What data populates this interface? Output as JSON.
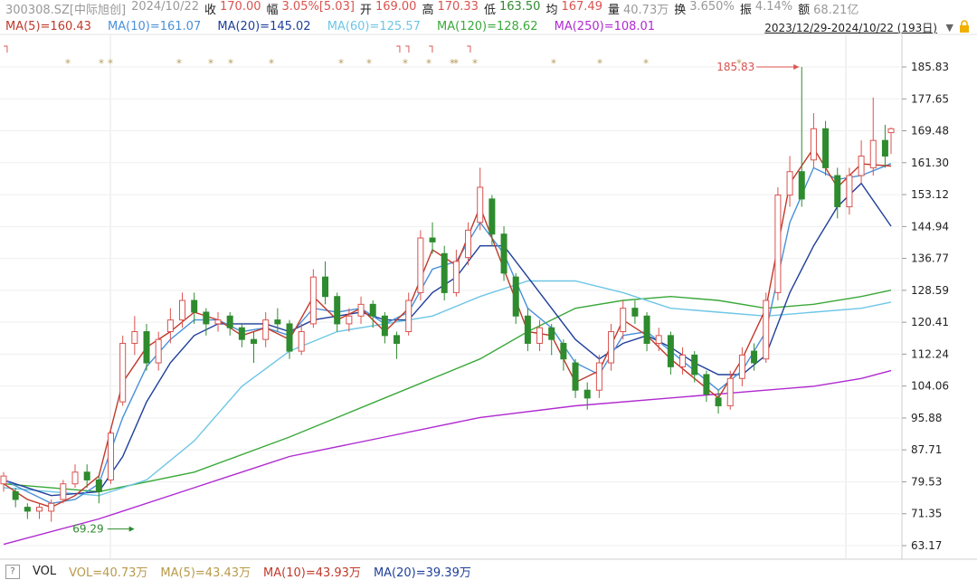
{
  "header": {
    "code": "300308.SZ[中际旭创]",
    "date": "2024/10/22",
    "close_label": "收",
    "close": "170.00",
    "chg_label": "幅",
    "chg": "3.05%[5.03]",
    "open_label": "开",
    "open": "169.00",
    "high_label": "高",
    "high": "170.33",
    "low_label": "低",
    "low": "163.50",
    "avg_label": "均",
    "avg": "167.49",
    "vol_label": "量",
    "vol": "40.73万",
    "turn_label": "换",
    "turn": "3.650%",
    "amp_label": "振",
    "amp": "4.14%",
    "amt_label": "额",
    "amt": "68.21亿"
  },
  "ma_legend": {
    "ma5": "MA(5)=160.43",
    "ma10": "MA(10)=161.07",
    "ma20": "MA(20)=145.02",
    "ma60": "MA(60)=125.57",
    "ma120": "MA(120)=128.62",
    "ma250": "MA(250)=108.01"
  },
  "date_range": "2023/12/29-2024/10/22 (193日)",
  "volume_bar": {
    "help": "?",
    "label": "VOL",
    "vol": "VOL=40.73万",
    "ma5": "MA(5)=43.43万",
    "ma10": "MA(10)=43.93万",
    "ma20": "MA(20)=39.39万"
  },
  "colors": {
    "up": "#d9534f",
    "down": "#2e8b2e",
    "ma5": "#c0392b",
    "ma10": "#4a90d9",
    "ma20": "#1f3f9a",
    "ma60": "#6ec6e6",
    "ma120": "#3aa83a",
    "ma250": "#b02ad0"
  },
  "chart_data": {
    "type": "candlestick",
    "ylim": [
      63.17,
      185.83
    ],
    "y_ticks": [
      "185.83",
      "177.65",
      "169.48",
      "161.30",
      "153.12",
      "144.94",
      "136.77",
      "128.59",
      "120.41",
      "112.24",
      "104.06",
      "95.88",
      "87.71",
      "79.53",
      "71.35",
      "63.17"
    ],
    "annotations": {
      "high_label": "185.83",
      "low_label": "69.29"
    },
    "close_path": [
      [
        0,
        80
      ],
      [
        6,
        76
      ],
      [
        12,
        73
      ],
      [
        18,
        72
      ],
      [
        24,
        73
      ],
      [
        30,
        78
      ],
      [
        36,
        74
      ],
      [
        42,
        82
      ],
      [
        48,
        80
      ],
      [
        54,
        92
      ],
      [
        60,
        115
      ],
      [
        66,
        118
      ],
      [
        72,
        110
      ],
      [
        78,
        115
      ],
      [
        84,
        120
      ],
      [
        90,
        126
      ],
      [
        96,
        123
      ],
      [
        102,
        120
      ],
      [
        108,
        121
      ],
      [
        114,
        119
      ],
      [
        120,
        116
      ],
      [
        126,
        115
      ],
      [
        132,
        121
      ],
      [
        138,
        120
      ],
      [
        144,
        113
      ],
      [
        150,
        118
      ],
      [
        156,
        132
      ],
      [
        162,
        127
      ],
      [
        168,
        120
      ],
      [
        174,
        122
      ],
      [
        180,
        125
      ],
      [
        186,
        122
      ],
      [
        192,
        117
      ],
      [
        198,
        115
      ],
      [
        204,
        126
      ],
      [
        210,
        142
      ],
      [
        216,
        141
      ],
      [
        222,
        128
      ],
      [
        228,
        136
      ],
      [
        234,
        144
      ],
      [
        240,
        153
      ],
      [
        246,
        143
      ],
      [
        252,
        133
      ],
      [
        258,
        122
      ],
      [
        264,
        115
      ],
      [
        270,
        119
      ],
      [
        276,
        118
      ],
      [
        282,
        111
      ],
      [
        288,
        103
      ],
      [
        294,
        100
      ],
      [
        300,
        110
      ],
      [
        306,
        118
      ],
      [
        312,
        124
      ],
      [
        318,
        122
      ],
      [
        324,
        115
      ],
      [
        330,
        116
      ],
      [
        336,
        109
      ],
      [
        342,
        112
      ],
      [
        348,
        107
      ],
      [
        354,
        102
      ],
      [
        360,
        99
      ],
      [
        366,
        106
      ],
      [
        372,
        112
      ],
      [
        378,
        111
      ],
      [
        384,
        126
      ],
      [
        390,
        153
      ],
      [
        396,
        159
      ],
      [
        402,
        152
      ],
      [
        408,
        170
      ],
      [
        414,
        160
      ],
      [
        420,
        150
      ],
      [
        426,
        158
      ],
      [
        432,
        163
      ],
      [
        438,
        167
      ],
      [
        444,
        165
      ],
      [
        447,
        170
      ]
    ],
    "ma5_path": [
      [
        0,
        79
      ],
      [
        12,
        75
      ],
      [
        24,
        73
      ],
      [
        36,
        76
      ],
      [
        48,
        81
      ],
      [
        60,
        105
      ],
      [
        72,
        114
      ],
      [
        84,
        118
      ],
      [
        96,
        123
      ],
      [
        108,
        121
      ],
      [
        120,
        117
      ],
      [
        132,
        119
      ],
      [
        144,
        116
      ],
      [
        156,
        127
      ],
      [
        168,
        121
      ],
      [
        180,
        124
      ],
      [
        192,
        118
      ],
      [
        204,
        124
      ],
      [
        216,
        139
      ],
      [
        228,
        135
      ],
      [
        240,
        150
      ],
      [
        252,
        134
      ],
      [
        264,
        118
      ],
      [
        276,
        117
      ],
      [
        288,
        105
      ],
      [
        300,
        108
      ],
      [
        312,
        121
      ],
      [
        324,
        117
      ],
      [
        336,
        111
      ],
      [
        348,
        106
      ],
      [
        360,
        101
      ],
      [
        372,
        111
      ],
      [
        384,
        124
      ],
      [
        396,
        156
      ],
      [
        408,
        165
      ],
      [
        420,
        155
      ],
      [
        432,
        161
      ],
      [
        447,
        160.43
      ]
    ],
    "ma10_path": [
      [
        0,
        80
      ],
      [
        12,
        77
      ],
      [
        24,
        74
      ],
      [
        36,
        75
      ],
      [
        48,
        79
      ],
      [
        60,
        96
      ],
      [
        72,
        109
      ],
      [
        84,
        116
      ],
      [
        96,
        121
      ],
      [
        108,
        121
      ],
      [
        120,
        118
      ],
      [
        132,
        119
      ],
      [
        144,
        117
      ],
      [
        156,
        124
      ],
      [
        168,
        123
      ],
      [
        180,
        124
      ],
      [
        192,
        120
      ],
      [
        204,
        123
      ],
      [
        216,
        134
      ],
      [
        228,
        136
      ],
      [
        240,
        146
      ],
      [
        252,
        138
      ],
      [
        264,
        124
      ],
      [
        276,
        119
      ],
      [
        288,
        110
      ],
      [
        300,
        107
      ],
      [
        312,
        117
      ],
      [
        324,
        118
      ],
      [
        336,
        113
      ],
      [
        348,
        108
      ],
      [
        360,
        103
      ],
      [
        372,
        108
      ],
      [
        384,
        118
      ],
      [
        396,
        146
      ],
      [
        408,
        160
      ],
      [
        420,
        157
      ],
      [
        432,
        158
      ],
      [
        447,
        161.07
      ]
    ],
    "ma20_path": [
      [
        0,
        80
      ],
      [
        24,
        76
      ],
      [
        48,
        77
      ],
      [
        60,
        86
      ],
      [
        72,
        100
      ],
      [
        84,
        110
      ],
      [
        96,
        117
      ],
      [
        108,
        120
      ],
      [
        120,
        120
      ],
      [
        132,
        120
      ],
      [
        144,
        118
      ],
      [
        156,
        121
      ],
      [
        168,
        122
      ],
      [
        180,
        123
      ],
      [
        192,
        121
      ],
      [
        204,
        121
      ],
      [
        216,
        128
      ],
      [
        228,
        132
      ],
      [
        240,
        140
      ],
      [
        252,
        140
      ],
      [
        264,
        132
      ],
      [
        276,
        124
      ],
      [
        288,
        116
      ],
      [
        300,
        111
      ],
      [
        312,
        115
      ],
      [
        324,
        117
      ],
      [
        336,
        114
      ],
      [
        348,
        110
      ],
      [
        360,
        107
      ],
      [
        372,
        107
      ],
      [
        384,
        112
      ],
      [
        396,
        128
      ],
      [
        408,
        140
      ],
      [
        420,
        150
      ],
      [
        432,
        156
      ],
      [
        447,
        145.02
      ]
    ],
    "ma60_path": [
      [
        0,
        78
      ],
      [
        24,
        77
      ],
      [
        48,
        76
      ],
      [
        72,
        80
      ],
      [
        96,
        90
      ],
      [
        120,
        104
      ],
      [
        144,
        113
      ],
      [
        168,
        118
      ],
      [
        192,
        120
      ],
      [
        216,
        122
      ],
      [
        240,
        127
      ],
      [
        264,
        131
      ],
      [
        288,
        131
      ],
      [
        312,
        128
      ],
      [
        336,
        124
      ],
      [
        360,
        123
      ],
      [
        384,
        122
      ],
      [
        408,
        123
      ],
      [
        432,
        124
      ],
      [
        447,
        125.57
      ]
    ],
    "ma120_path": [
      [
        0,
        79
      ],
      [
        48,
        77
      ],
      [
        96,
        82
      ],
      [
        144,
        91
      ],
      [
        192,
        101
      ],
      [
        240,
        111
      ],
      [
        264,
        118
      ],
      [
        288,
        124
      ],
      [
        312,
        126
      ],
      [
        336,
        127
      ],
      [
        360,
        126
      ],
      [
        384,
        124
      ],
      [
        408,
        125
      ],
      [
        432,
        127
      ],
      [
        447,
        128.62
      ]
    ],
    "ma250_path": [
      [
        0,
        63.5
      ],
      [
        48,
        70
      ],
      [
        96,
        78
      ],
      [
        144,
        86
      ],
      [
        192,
        91
      ],
      [
        240,
        96
      ],
      [
        288,
        99
      ],
      [
        336,
        101
      ],
      [
        384,
        103
      ],
      [
        408,
        104
      ],
      [
        432,
        106
      ],
      [
        447,
        108.01
      ]
    ],
    "candles": [
      {
        "i": 0,
        "o": 79,
        "c": 81,
        "h": 82,
        "l": 77
      },
      {
        "i": 6,
        "o": 77,
        "c": 75,
        "h": 78,
        "l": 73
      },
      {
        "i": 12,
        "o": 73,
        "c": 72,
        "h": 74,
        "l": 70
      },
      {
        "i": 18,
        "o": 72,
        "c": 73,
        "h": 74,
        "l": 70
      },
      {
        "i": 24,
        "o": 72,
        "c": 74,
        "h": 75,
        "l": 69.29
      },
      {
        "i": 30,
        "o": 75,
        "c": 79,
        "h": 80,
        "l": 74
      },
      {
        "i": 36,
        "o": 79,
        "c": 82,
        "h": 84,
        "l": 78
      },
      {
        "i": 42,
        "o": 82,
        "c": 80,
        "h": 84,
        "l": 78
      },
      {
        "i": 48,
        "o": 80,
        "c": 77,
        "h": 81,
        "l": 74
      },
      {
        "i": 54,
        "o": 80,
        "c": 92,
        "h": 93,
        "l": 79
      },
      {
        "i": 60,
        "o": 100,
        "c": 115,
        "h": 117,
        "l": 99
      },
      {
        "i": 66,
        "o": 115,
        "c": 118,
        "h": 122,
        "l": 112
      },
      {
        "i": 72,
        "o": 118,
        "c": 110,
        "h": 120,
        "l": 108
      },
      {
        "i": 78,
        "o": 110,
        "c": 116,
        "h": 118,
        "l": 108
      },
      {
        "i": 84,
        "o": 118,
        "c": 121,
        "h": 124,
        "l": 115
      },
      {
        "i": 90,
        "o": 121,
        "c": 126,
        "h": 128,
        "l": 119
      },
      {
        "i": 96,
        "o": 126,
        "c": 123,
        "h": 128,
        "l": 120
      },
      {
        "i": 102,
        "o": 123,
        "c": 120,
        "h": 124,
        "l": 117
      },
      {
        "i": 108,
        "o": 120,
        "c": 121,
        "h": 123,
        "l": 118
      },
      {
        "i": 114,
        "o": 122,
        "c": 119,
        "h": 123,
        "l": 117
      },
      {
        "i": 120,
        "o": 119,
        "c": 116,
        "h": 120,
        "l": 114
      },
      {
        "i": 126,
        "o": 116,
        "c": 115,
        "h": 118,
        "l": 110
      },
      {
        "i": 132,
        "o": 116,
        "c": 121,
        "h": 123,
        "l": 114
      },
      {
        "i": 138,
        "o": 121,
        "c": 120,
        "h": 124,
        "l": 118
      },
      {
        "i": 144,
        "o": 120,
        "c": 113,
        "h": 121,
        "l": 111
      },
      {
        "i": 150,
        "o": 113,
        "c": 118,
        "h": 120,
        "l": 112
      },
      {
        "i": 156,
        "o": 120,
        "c": 132,
        "h": 134,
        "l": 119
      },
      {
        "i": 162,
        "o": 132,
        "c": 127,
        "h": 136,
        "l": 125
      },
      {
        "i": 168,
        "o": 127,
        "c": 120,
        "h": 128,
        "l": 118
      },
      {
        "i": 174,
        "o": 120,
        "c": 122,
        "h": 124,
        "l": 118
      },
      {
        "i": 180,
        "o": 122,
        "c": 125,
        "h": 127,
        "l": 120
      },
      {
        "i": 186,
        "o": 125,
        "c": 122,
        "h": 126,
        "l": 119
      },
      {
        "i": 192,
        "o": 122,
        "c": 117,
        "h": 123,
        "l": 115
      },
      {
        "i": 198,
        "o": 117,
        "c": 115,
        "h": 118,
        "l": 111
      },
      {
        "i": 204,
        "o": 118,
        "c": 126,
        "h": 128,
        "l": 117
      },
      {
        "i": 210,
        "o": 128,
        "c": 142,
        "h": 144,
        "l": 126
      },
      {
        "i": 216,
        "o": 142,
        "c": 141,
        "h": 146,
        "l": 138
      },
      {
        "i": 222,
        "o": 138,
        "c": 128,
        "h": 140,
        "l": 126
      },
      {
        "i": 228,
        "o": 128,
        "c": 136,
        "h": 139,
        "l": 127
      },
      {
        "i": 234,
        "o": 137,
        "c": 144,
        "h": 146,
        "l": 135
      },
      {
        "i": 240,
        "o": 146,
        "c": 155,
        "h": 160,
        "l": 144
      },
      {
        "i": 246,
        "o": 152,
        "c": 143,
        "h": 153,
        "l": 140
      },
      {
        "i": 252,
        "o": 143,
        "c": 133,
        "h": 145,
        "l": 131
      },
      {
        "i": 258,
        "o": 132,
        "c": 122,
        "h": 133,
        "l": 120
      },
      {
        "i": 264,
        "o": 122,
        "c": 115,
        "h": 124,
        "l": 113
      },
      {
        "i": 270,
        "o": 115,
        "c": 119,
        "h": 121,
        "l": 113
      },
      {
        "i": 276,
        "o": 119,
        "c": 116,
        "h": 120,
        "l": 112
      },
      {
        "i": 282,
        "o": 115,
        "c": 111,
        "h": 116,
        "l": 108
      },
      {
        "i": 288,
        "o": 110,
        "c": 103,
        "h": 111,
        "l": 101
      },
      {
        "i": 294,
        "o": 103,
        "c": 101,
        "h": 105,
        "l": 98
      },
      {
        "i": 300,
        "o": 103,
        "c": 110,
        "h": 112,
        "l": 101
      },
      {
        "i": 306,
        "o": 110,
        "c": 118,
        "h": 120,
        "l": 108
      },
      {
        "i": 312,
        "o": 118,
        "c": 124,
        "h": 126,
        "l": 116
      },
      {
        "i": 318,
        "o": 124,
        "c": 122,
        "h": 126,
        "l": 120
      },
      {
        "i": 324,
        "o": 122,
        "c": 115,
        "h": 123,
        "l": 113
      },
      {
        "i": 330,
        "o": 115,
        "c": 117,
        "h": 119,
        "l": 113
      },
      {
        "i": 336,
        "o": 117,
        "c": 109,
        "h": 118,
        "l": 107
      },
      {
        "i": 342,
        "o": 109,
        "c": 112,
        "h": 114,
        "l": 107
      },
      {
        "i": 348,
        "o": 112,
        "c": 107,
        "h": 113,
        "l": 105
      },
      {
        "i": 354,
        "o": 107,
        "c": 102,
        "h": 108,
        "l": 100
      },
      {
        "i": 360,
        "o": 101,
        "c": 99,
        "h": 103,
        "l": 97
      },
      {
        "i": 366,
        "o": 99,
        "c": 106,
        "h": 108,
        "l": 98
      },
      {
        "i": 372,
        "o": 106,
        "c": 112,
        "h": 114,
        "l": 104
      },
      {
        "i": 378,
        "o": 113,
        "c": 110,
        "h": 115,
        "l": 108
      },
      {
        "i": 384,
        "o": 111,
        "c": 126,
        "h": 128,
        "l": 110
      },
      {
        "i": 390,
        "o": 128,
        "c": 153,
        "h": 155,
        "l": 126
      },
      {
        "i": 396,
        "o": 153,
        "c": 159,
        "h": 163,
        "l": 150
      },
      {
        "i": 402,
        "o": 159,
        "c": 152,
        "h": 185.83,
        "l": 150
      },
      {
        "i": 408,
        "o": 162,
        "c": 170,
        "h": 174,
        "l": 160
      },
      {
        "i": 414,
        "o": 170,
        "c": 160,
        "h": 172,
        "l": 158
      },
      {
        "i": 420,
        "o": 158,
        "c": 150,
        "h": 160,
        "l": 147
      },
      {
        "i": 426,
        "o": 150,
        "c": 158,
        "h": 160,
        "l": 148
      },
      {
        "i": 432,
        "o": 158,
        "c": 163,
        "h": 167,
        "l": 156
      },
      {
        "i": 438,
        "o": 160,
        "c": 167,
        "h": 178,
        "l": 158
      },
      {
        "i": 444,
        "o": 167,
        "c": 163,
        "h": 171,
        "l": 160
      },
      {
        "i": 447,
        "o": 169,
        "c": 170,
        "h": 170.33,
        "l": 163.5
      }
    ],
    "star_marks": "*",
    "flag_marks": "┐"
  }
}
